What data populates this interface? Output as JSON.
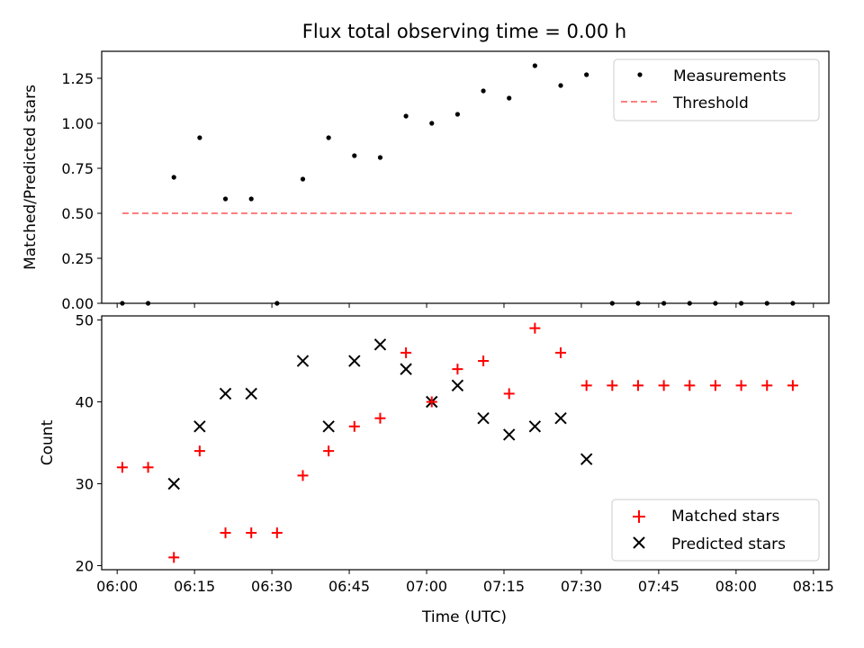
{
  "chart_data": [
    {
      "type": "scatter",
      "title": "Flux total observing time = 0.00 h",
      "xlabel": "",
      "ylabel": "Matched/Predicted stars",
      "xlim": [
        "05:57",
        "08:18"
      ],
      "ylim": [
        0,
        1.4
      ],
      "grid": false,
      "legend_position": "top-right",
      "y_ticks": [
        "0.00",
        "0.25",
        "0.50",
        "0.75",
        "1.00",
        "1.25"
      ],
      "series": [
        {
          "name": "Measurements",
          "marker": "dot",
          "color": "#000000",
          "x": [
            "06:01",
            "06:06",
            "06:11",
            "06:16",
            "06:21",
            "06:26",
            "06:31",
            "06:36",
            "06:41",
            "06:46",
            "06:51",
            "06:56",
            "07:01",
            "07:06",
            "07:11",
            "07:16",
            "07:21",
            "07:26",
            "07:31",
            "07:36",
            "07:41",
            "07:46",
            "07:51",
            "07:56",
            "08:01",
            "08:06",
            "08:11"
          ],
          "y": [
            0,
            0,
            0.7,
            0.92,
            0.58,
            0.58,
            0,
            0.69,
            0.92,
            0.82,
            0.81,
            1.04,
            1.0,
            1.05,
            1.18,
            1.14,
            1.32,
            1.21,
            1.27,
            0,
            0,
            0,
            0,
            0,
            0,
            0,
            0
          ]
        },
        {
          "name": "Threshold",
          "style": "dashed-line",
          "color": "#ff7f7f",
          "x": [
            "06:01",
            "08:11"
          ],
          "y": [
            0.5,
            0.5
          ]
        }
      ]
    },
    {
      "type": "scatter",
      "title": "",
      "xlabel": "Time (UTC)",
      "ylabel": "Count",
      "xlim": [
        "05:57",
        "08:18"
      ],
      "ylim": [
        19.5,
        50.5
      ],
      "grid": false,
      "legend_position": "bottom-right",
      "x_ticks": [
        "06:00",
        "06:15",
        "06:30",
        "06:45",
        "07:00",
        "07:15",
        "07:30",
        "07:45",
        "08:00",
        "08:15"
      ],
      "y_ticks": [
        "20",
        "30",
        "40",
        "50"
      ],
      "series": [
        {
          "name": "Matched stars",
          "marker": "plus",
          "color": "#ff0000",
          "x": [
            "06:01",
            "06:06",
            "06:11",
            "06:16",
            "06:21",
            "06:26",
            "06:31",
            "06:36",
            "06:41",
            "06:46",
            "06:51",
            "06:56",
            "07:01",
            "07:06",
            "07:11",
            "07:16",
            "07:21",
            "07:26",
            "07:31",
            "07:36",
            "07:41",
            "07:46",
            "07:51",
            "07:56",
            "08:01",
            "08:06",
            "08:11"
          ],
          "y": [
            32,
            32,
            21,
            34,
            24,
            24,
            24,
            31,
            34,
            37,
            38,
            46,
            40,
            44,
            45,
            41,
            49,
            46,
            42,
            42,
            42,
            42,
            42,
            42,
            42,
            42,
            42
          ]
        },
        {
          "name": "Predicted stars",
          "marker": "x",
          "color": "#000000",
          "x": [
            "06:11",
            "06:16",
            "06:21",
            "06:26",
            "06:36",
            "06:41",
            "06:46",
            "06:51",
            "06:56",
            "07:01",
            "07:06",
            "07:11",
            "07:16",
            "07:21",
            "07:26",
            "07:31"
          ],
          "y": [
            30,
            37,
            41,
            41,
            45,
            37,
            45,
            47,
            44,
            40,
            42,
            38,
            36,
            37,
            38,
            33
          ]
        }
      ]
    }
  ]
}
